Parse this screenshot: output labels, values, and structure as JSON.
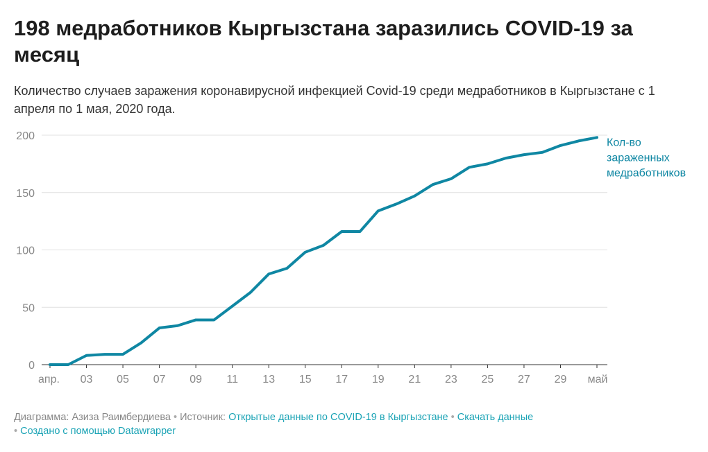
{
  "title": "198 медработников Кыргызстана заразились COVID-19 за месяц",
  "subtitle": "Количество случаев заражения коронавирусной инфекцией Covid-19 среди медработников в Кыргызстане с 1 апреля по 1 мая, 2020 года.",
  "footer": {
    "author_prefix": "Диаграмма: Азиза Раимбердиева",
    "sep": "•",
    "source_prefix": "Источник:",
    "source_link": "Открытые данные по COVID-19 в Кыргызстане",
    "download_link": "Скачать данные",
    "created_link": "Создано с помощью Datawrapper"
  },
  "colors": {
    "line": "#0f87a3",
    "grid": "#e0e0e0",
    "axis_text": "#888888",
    "link": "#1aa3b5"
  },
  "chart_data": {
    "type": "line",
    "title": "198 медработников Кыргызстана заразились COVID-19 за месяц",
    "x": [
      1,
      2,
      3,
      4,
      5,
      6,
      7,
      8,
      9,
      10,
      11,
      12,
      13,
      14,
      15,
      16,
      17,
      18,
      19,
      20,
      21,
      22,
      23,
      24,
      25,
      26,
      27,
      28,
      29,
      30,
      31
    ],
    "x_tick_labels": [
      "апр.",
      "03",
      "05",
      "07",
      "09",
      "11",
      "13",
      "15",
      "17",
      "19",
      "21",
      "23",
      "25",
      "27",
      "29",
      "май"
    ],
    "x_tick_positions": [
      1,
      3,
      5,
      7,
      9,
      11,
      13,
      15,
      17,
      19,
      21,
      23,
      25,
      27,
      29,
      31
    ],
    "ylim": [
      0,
      200
    ],
    "y_ticks": [
      0,
      50,
      100,
      150,
      200
    ],
    "grid": true,
    "series": [
      {
        "name": "Кол-во зараженных медработников",
        "label_lines": [
          "Кол-во",
          "зараженных",
          "медработников"
        ],
        "values": [
          0,
          0,
          8,
          9,
          9,
          19,
          32,
          34,
          39,
          39,
          51,
          63,
          79,
          84,
          98,
          104,
          116,
          116,
          134,
          140,
          147,
          157,
          162,
          172,
          175,
          180,
          183,
          185,
          191,
          195,
          198
        ]
      }
    ]
  }
}
